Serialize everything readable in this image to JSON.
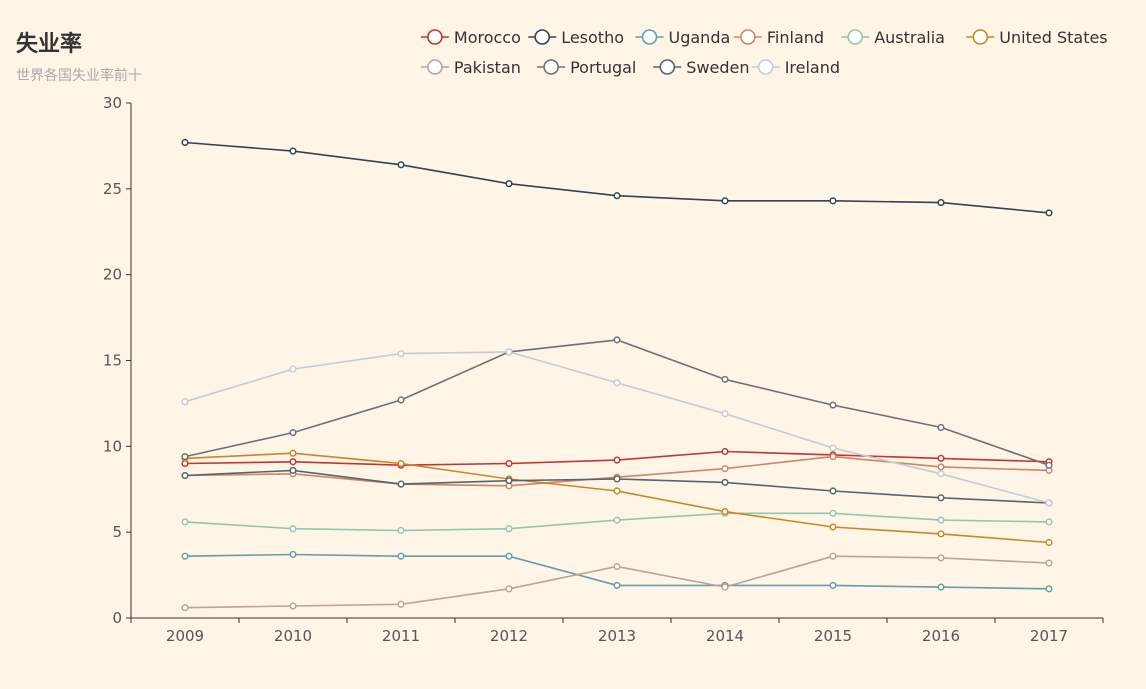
{
  "chart_data": {
    "type": "line",
    "title": "失业率",
    "subtitle": "世界各国失业率前十",
    "x": [
      "2009",
      "2010",
      "2011",
      "2012",
      "2013",
      "2014",
      "2015",
      "2016",
      "2017"
    ],
    "ylim": [
      0,
      30
    ],
    "yticks": [
      0,
      5,
      10,
      15,
      20,
      25,
      30
    ],
    "legend_position": "top-right",
    "grid": false,
    "series": [
      {
        "name": "Morocco",
        "color": "#c23531",
        "values": [
          9.0,
          9.1,
          8.9,
          9.0,
          9.2,
          9.7,
          9.5,
          9.3,
          9.1
        ]
      },
      {
        "name": "Lesotho",
        "color": "#2f4554",
        "values": [
          27.7,
          27.2,
          26.4,
          25.3,
          24.6,
          24.3,
          24.3,
          24.2,
          23.6
        ]
      },
      {
        "name": "Uganda",
        "color": "#61a0a8",
        "values": [
          3.6,
          3.7,
          3.6,
          3.6,
          1.9,
          1.9,
          1.9,
          1.8,
          1.7
        ]
      },
      {
        "name": "Finland",
        "color": "#d48265",
        "values": [
          8.3,
          8.4,
          7.8,
          7.7,
          8.2,
          8.7,
          9.4,
          8.8,
          8.6
        ]
      },
      {
        "name": "Australia",
        "color": "#91c7ae",
        "values": [
          5.6,
          5.2,
          5.1,
          5.2,
          5.7,
          6.1,
          6.1,
          5.7,
          5.6
        ]
      },
      {
        "name": "United States",
        "color": "#ca8622",
        "values": [
          9.3,
          9.6,
          9.0,
          8.1,
          7.4,
          6.2,
          5.3,
          4.9,
          4.4
        ]
      },
      {
        "name": "Pakistan",
        "color": "#bda29a",
        "values": [
          0.6,
          0.7,
          0.8,
          1.7,
          3.0,
          1.8,
          3.6,
          3.5,
          3.2
        ]
      },
      {
        "name": "Portugal",
        "color": "#6e7074",
        "values": [
          9.4,
          10.8,
          12.7,
          15.5,
          16.2,
          13.9,
          12.4,
          11.1,
          8.9
        ]
      },
      {
        "name": "Sweden",
        "color": "#546570",
        "values": [
          8.3,
          8.6,
          7.8,
          8.0,
          8.1,
          7.9,
          7.4,
          7.0,
          6.7
        ]
      },
      {
        "name": "Ireland",
        "color": "#c4ccd3",
        "values": [
          12.6,
          14.5,
          15.4,
          15.5,
          13.7,
          11.9,
          9.9,
          8.4,
          6.7
        ]
      }
    ]
  }
}
